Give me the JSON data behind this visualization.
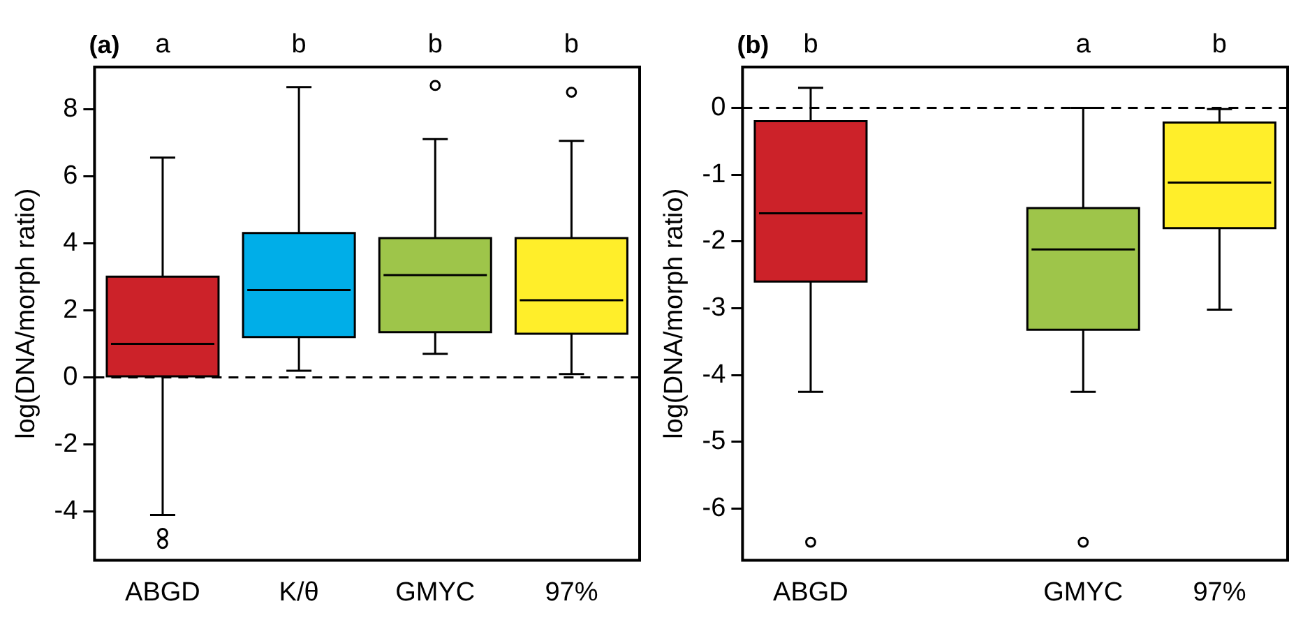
{
  "chart_data": [
    {
      "type": "box",
      "title": "(a)",
      "ylabel": "log(DNA/morph ratio)",
      "categories": [
        "ABGD",
        "K/θ",
        "GMYC",
        "97%"
      ],
      "colors": [
        "#cc2229",
        "#00aee8",
        "#9ec54a",
        "#ffee2a"
      ],
      "boxes": [
        {
          "low": -4.1,
          "q1": 0,
          "median": 1.0,
          "q3": 3.0,
          "high": 6.55,
          "outliers": [
            -4.65,
            -4.95
          ]
        },
        {
          "low": 0.2,
          "q1": 1.2,
          "median": 2.6,
          "q3": 4.3,
          "high": 8.65
        },
        {
          "low": 0.7,
          "q1": 1.35,
          "median": 3.05,
          "q3": 4.15,
          "high": 7.1,
          "outliers": [
            8.7
          ]
        },
        {
          "low": 0.1,
          "q1": 1.3,
          "median": 2.3,
          "q3": 4.15,
          "high": 7.05,
          "outliers": [
            8.5
          ]
        }
      ],
      "ylim": [
        -5.45,
        9.25
      ],
      "yticks": [
        -4,
        -2,
        0,
        2,
        4,
        6,
        8
      ],
      "grid": false,
      "ref_lines": [
        {
          "axis": "y",
          "value": 0,
          "line_style": "dashed"
        }
      ],
      "annotations": [
        "a",
        "b",
        "b",
        "b"
      ]
    },
    {
      "type": "box",
      "title": "(b)",
      "ylabel": "log(DNA/morph ratio)",
      "categories": [
        "ABGD",
        null,
        "GMYC",
        "97%"
      ],
      "colors": [
        "#cc2229",
        null,
        "#9ec54a",
        "#ffee2a"
      ],
      "boxes": [
        {
          "low": -4.25,
          "q1": -2.6,
          "median": -1.58,
          "q3": -0.2,
          "high": 0.3,
          "outliers": [
            -6.5
          ]
        },
        null,
        {
          "low": -4.25,
          "q1": -3.32,
          "median": -2.12,
          "q3": -1.5,
          "high": 0,
          "outliers": [
            -6.5
          ]
        },
        {
          "low": -3.02,
          "q1": -1.8,
          "median": -1.12,
          "q3": -0.22,
          "high": -0.02
        }
      ],
      "ylim": [
        -6.77,
        0.61
      ],
      "yticks": [
        -6,
        -5,
        -4,
        -3,
        -2,
        -1,
        0
      ],
      "grid": false,
      "ref_lines": [
        {
          "axis": "y",
          "value": 0,
          "line_style": "dashed"
        }
      ],
      "annotations": [
        "b",
        "a",
        "b"
      ]
    }
  ]
}
